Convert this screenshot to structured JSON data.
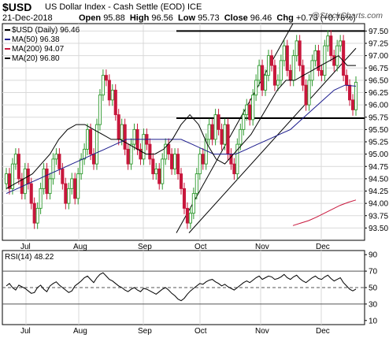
{
  "header": {
    "symbol": "$USD",
    "title": "US Dollar Index - Cash Settle (EOD)  ICE",
    "date": "21-Dec-2018",
    "open_label": "Open",
    "open": "95.88",
    "high_label": "High",
    "high": "96.56",
    "low_label": "Low",
    "low": "95.73",
    "close_label": "Close",
    "close": "96.46",
    "chg_label": "Chg",
    "chg": "+0.73 (+0.76%)",
    "credit": "@StockCharts.com"
  },
  "legend": {
    "price": "$USD (Daily) 96.46",
    "ma50": "MA(50) 96.38",
    "ma200": "MA(200) 94.07",
    "ma20": "MA(20) 96.80"
  },
  "colors": {
    "up": "#2e9a2e",
    "down": "#c8173c",
    "ma50": "#1a1a8c",
    "ma200": "#c8173c",
    "ma20": "#000000",
    "grid": "#d9d9d9",
    "rsi": "#000000"
  },
  "chart_data": [
    {
      "type": "candlestick",
      "title": "$USD (Daily) 96.46",
      "x_tick_labels": [
        "Jul",
        "Aug",
        "Sep",
        "Oct",
        "Nov",
        "Dec"
      ],
      "y_tick_labels": [
        "97.50",
        "97.25",
        "97.00",
        "96.75",
        "96.50",
        "96.25",
        "96.00",
        "95.75",
        "95.50",
        "95.25",
        "95.00",
        "94.75",
        "94.50",
        "94.25",
        "94.00",
        "93.75",
        "93.50"
      ],
      "ylim": [
        93.25,
        97.65
      ],
      "grid": true,
      "candles_close": [
        94.6,
        94.3,
        94.8,
        95.0,
        94.5,
        94.2,
        94.7,
        94.4,
        94.0,
        93.6,
        93.9,
        94.3,
        94.7,
        94.2,
        94.5,
        94.9,
        95.0,
        94.7,
        94.4,
        94.0,
        94.3,
        94.5,
        94.1,
        94.6,
        94.9,
        95.1,
        95.5,
        95.0,
        94.8,
        95.6,
        96.2,
        96.6,
        96.5,
        96.1,
        96.3,
        95.8,
        95.3,
        95.6,
        95.1,
        94.8,
        95.2,
        95.5,
        95.1,
        94.9,
        95.4,
        95.2,
        94.9,
        94.6,
        94.7,
        94.4,
        94.9,
        95.2,
        95.0,
        94.7,
        95.0,
        94.6,
        94.3,
        93.9,
        93.6,
        93.8,
        94.2,
        94.6,
        95.0,
        94.8,
        95.3,
        95.6,
        95.3,
        95.8,
        95.5,
        95.2,
        95.6,
        95.0,
        94.8,
        94.6,
        95.2,
        95.5,
        95.8,
        96.0,
        95.7,
        96.2,
        96.5,
        96.8,
        96.3,
        96.6,
        97.0,
        96.8,
        96.4,
        96.5,
        96.9,
        97.2,
        96.7,
        96.5,
        97.0,
        97.3,
        96.8,
        96.4,
        96.0,
        96.5,
        96.9,
        97.1,
        96.7,
        96.6,
        97.2,
        97.4,
        97.0,
        96.8,
        97.2,
        97.3,
        96.6,
        96.4,
        96.1,
        95.9,
        96.46
      ],
      "series": [
        {
          "name": "MA(50) 96.38",
          "values": [
            94.2,
            94.3,
            94.4,
            94.5,
            94.6,
            94.7,
            94.8,
            94.9,
            95.0,
            95.1,
            95.2,
            95.3,
            95.3,
            95.3,
            95.3,
            95.3,
            95.3,
            95.2,
            95.1,
            95.0,
            95.0,
            95.0,
            95.1,
            95.2,
            95.3,
            95.4,
            95.5,
            95.7,
            95.9,
            96.1,
            96.3,
            96.4,
            96.38
          ]
        },
        {
          "name": "MA(200) 94.07",
          "values": [
            93.55,
            93.6,
            93.65,
            93.72,
            93.8,
            93.88,
            93.96,
            94.02,
            94.07
          ]
        },
        {
          "name": "MA(20) 96.80",
          "values": [
            94.3,
            94.4,
            94.5,
            94.6,
            94.8,
            95.0,
            95.3,
            95.5,
            95.6,
            95.6,
            95.5,
            95.4,
            95.3,
            95.3,
            95.2,
            95.1,
            95.0,
            95.0,
            95.1,
            95.3,
            95.6,
            95.8,
            95.6,
            95.2,
            94.9,
            94.8,
            95.0,
            95.2,
            95.4,
            95.7,
            96.0,
            96.3,
            96.5,
            96.5,
            96.6,
            96.7,
            96.8,
            96.9,
            97.0,
            96.8,
            96.8
          ]
        }
      ],
      "horizontal_lines": [
        97.5,
        95.73
      ]
    },
    {
      "type": "line",
      "title": "RSI(14) 48.22",
      "y_tick_labels": [
        "90",
        "70",
        "50",
        "30",
        "10"
      ],
      "ylim": [
        5,
        95
      ],
      "reference_lines": [
        70,
        50,
        30
      ],
      "series": [
        {
          "name": "RSI(14) 48.22",
          "values": [
            52,
            55,
            50,
            47,
            53,
            51,
            49,
            46,
            43,
            44,
            50,
            53,
            48,
            45,
            52,
            55,
            57,
            53,
            50,
            47,
            44,
            46,
            52,
            55,
            58,
            62,
            64,
            60,
            56,
            62,
            66,
            68,
            64,
            60,
            58,
            55,
            52,
            50,
            47,
            45,
            48,
            50,
            47,
            45,
            49,
            48,
            46,
            44,
            42,
            45,
            48,
            50,
            47,
            43,
            40,
            36,
            34,
            37,
            42,
            46,
            49,
            52,
            55,
            54,
            57,
            59,
            60,
            57,
            55,
            52,
            54,
            51,
            49,
            47,
            50,
            53,
            56,
            58,
            56,
            59,
            62,
            64,
            60,
            62,
            64,
            63,
            60,
            61,
            63,
            66,
            62,
            60,
            63,
            65,
            61,
            58,
            56,
            59,
            62,
            64,
            61,
            60,
            63,
            65,
            61,
            58,
            60,
            62,
            56,
            52,
            48,
            46,
            48.22
          ]
        }
      ]
    }
  ],
  "rsi_label": "RSI(14) 48.22"
}
